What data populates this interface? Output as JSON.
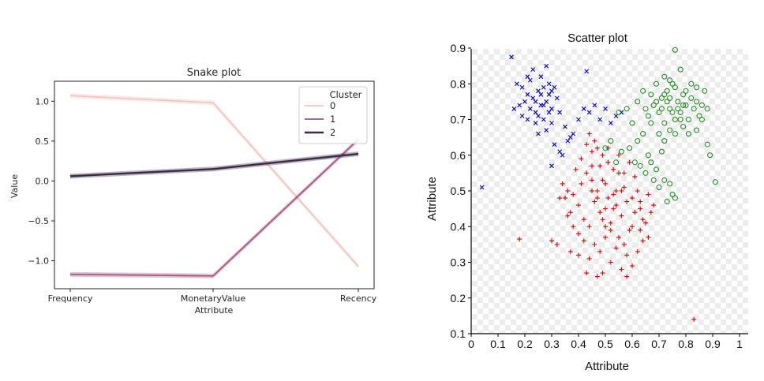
{
  "chart_data": [
    {
      "type": "line",
      "title": "Snake plot",
      "xlabel": "Attribute",
      "ylabel": "Value",
      "categories": [
        "Frequency",
        "MonetaryValue",
        "Recency"
      ],
      "ylim": [
        -1.35,
        1.25
      ],
      "yticks": [
        "1.0",
        "0.5",
        "0.0",
        "−0.5",
        "−1.0"
      ],
      "ytick_values": [
        1.0,
        0.5,
        0.0,
        -0.5,
        -1.0
      ],
      "legend": {
        "title": "Cluster",
        "position": "top-right"
      },
      "colors": [
        "#f1c4bd",
        "#a0527f",
        "#3a2a46"
      ],
      "series": [
        {
          "name": "0",
          "values": [
            1.07,
            0.98,
            -1.07
          ]
        },
        {
          "name": "1",
          "values": [
            -1.17,
            -1.19,
            0.52
          ]
        },
        {
          "name": "2",
          "values": [
            0.06,
            0.15,
            0.34
          ]
        }
      ]
    },
    {
      "type": "scatter",
      "title": "Scatter plot",
      "xlabel": "Attribute",
      "ylabel": "Attribute",
      "xlim": [
        0,
        1
      ],
      "ylim": [
        0.1,
        0.9
      ],
      "xticks": [
        "0",
        "0.1",
        "0.2",
        "0.3",
        "0.4",
        "0.5",
        "0.6",
        "0.7",
        "0.8",
        "0.9",
        "1"
      ],
      "xtick_values": [
        0,
        0.1,
        0.2,
        0.3,
        0.4,
        0.5,
        0.6,
        0.7,
        0.8,
        0.9,
        1
      ],
      "yticks": [
        "0.1",
        "0.2",
        "0.3",
        "0.4",
        "0.5",
        "0.6",
        "0.7",
        "0.8",
        "0.9"
      ],
      "ytick_values": [
        0.1,
        0.2,
        0.3,
        0.4,
        0.5,
        0.6,
        0.7,
        0.8,
        0.9
      ],
      "grid": "checkerboard",
      "series": [
        {
          "marker": "x",
          "color": "#0000cc",
          "points": [
            [
              0.15,
              0.875
            ],
            [
              0.04,
              0.51
            ],
            [
              0.43,
              0.835
            ],
            [
              0.19,
              0.79
            ],
            [
              0.21,
              0.77
            ],
            [
              0.22,
              0.73
            ],
            [
              0.23,
              0.76
            ],
            [
              0.24,
              0.72
            ],
            [
              0.25,
              0.78
            ],
            [
              0.26,
              0.74
            ],
            [
              0.27,
              0.7
            ],
            [
              0.28,
              0.75
            ],
            [
              0.29,
              0.77
            ],
            [
              0.3,
              0.73
            ],
            [
              0.31,
              0.79
            ],
            [
              0.2,
              0.75
            ],
            [
              0.22,
              0.81
            ],
            [
              0.24,
              0.69
            ],
            [
              0.26,
              0.82
            ],
            [
              0.28,
              0.67
            ],
            [
              0.3,
              0.69
            ],
            [
              0.32,
              0.76
            ],
            [
              0.23,
              0.84
            ],
            [
              0.25,
              0.71
            ],
            [
              0.27,
              0.79
            ],
            [
              0.29,
              0.72
            ],
            [
              0.21,
              0.7
            ],
            [
              0.33,
              0.72
            ],
            [
              0.18,
              0.74
            ],
            [
              0.19,
              0.71
            ],
            [
              0.35,
              0.68
            ],
            [
              0.36,
              0.64
            ],
            [
              0.38,
              0.66
            ],
            [
              0.4,
              0.7
            ],
            [
              0.42,
              0.73
            ],
            [
              0.44,
              0.72
            ],
            [
              0.46,
              0.74
            ],
            [
              0.48,
              0.7
            ],
            [
              0.5,
              0.73
            ],
            [
              0.52,
              0.69
            ],
            [
              0.54,
              0.71
            ],
            [
              0.56,
              0.72
            ],
            [
              0.31,
              0.63
            ],
            [
              0.33,
              0.61
            ],
            [
              0.3,
              0.57
            ],
            [
              0.34,
              0.6
            ],
            [
              0.37,
              0.65
            ],
            [
              0.27,
              0.74
            ],
            [
              0.24,
              0.75
            ],
            [
              0.26,
              0.77
            ],
            [
              0.28,
              0.85
            ],
            [
              0.17,
              0.8
            ],
            [
              0.16,
              0.73
            ],
            [
              0.21,
              0.82
            ],
            [
              0.25,
              0.66
            ],
            [
              0.29,
              0.8
            ],
            [
              0.3,
              0.78
            ]
          ]
        },
        {
          "marker": "+",
          "color": "#dd0000",
          "points": [
            [
              0.35,
              0.48
            ],
            [
              0.37,
              0.44
            ],
            [
              0.38,
              0.49
            ],
            [
              0.4,
              0.46
            ],
            [
              0.41,
              0.52
            ],
            [
              0.42,
              0.42
            ],
            [
              0.43,
              0.55
            ],
            [
              0.44,
              0.4
            ],
            [
              0.45,
              0.57
            ],
            [
              0.46,
              0.47
            ],
            [
              0.47,
              0.5
            ],
            [
              0.48,
              0.44
            ],
            [
              0.49,
              0.53
            ],
            [
              0.5,
              0.45
            ],
            [
              0.51,
              0.58
            ],
            [
              0.52,
              0.41
            ],
            [
              0.53,
              0.49
            ],
            [
              0.54,
              0.46
            ],
            [
              0.55,
              0.6
            ],
            [
              0.56,
              0.43
            ],
            [
              0.57,
              0.51
            ],
            [
              0.58,
              0.47
            ],
            [
              0.59,
              0.39
            ],
            [
              0.6,
              0.48
            ],
            [
              0.61,
              0.44
            ],
            [
              0.62,
              0.5
            ],
            [
              0.63,
              0.45
            ],
            [
              0.64,
              0.42
            ],
            [
              0.65,
              0.41
            ],
            [
              0.66,
              0.37
            ],
            [
              0.67,
              0.44
            ],
            [
              0.43,
              0.63
            ],
            [
              0.45,
              0.61
            ],
            [
              0.47,
              0.62
            ],
            [
              0.49,
              0.6
            ],
            [
              0.51,
              0.62
            ],
            [
              0.53,
              0.56
            ],
            [
              0.55,
              0.55
            ],
            [
              0.46,
              0.35
            ],
            [
              0.48,
              0.33
            ],
            [
              0.5,
              0.37
            ],
            [
              0.52,
              0.3
            ],
            [
              0.54,
              0.34
            ],
            [
              0.56,
              0.28
            ],
            [
              0.58,
              0.32
            ],
            [
              0.6,
              0.29
            ],
            [
              0.44,
              0.31
            ],
            [
              0.42,
              0.36
            ],
            [
              0.4,
              0.38
            ],
            [
              0.38,
              0.4
            ],
            [
              0.36,
              0.43
            ],
            [
              0.33,
              0.48
            ],
            [
              0.34,
              0.52
            ],
            [
              0.3,
              0.36
            ],
            [
              0.32,
              0.35
            ],
            [
              0.18,
              0.365
            ],
            [
              0.83,
              0.14
            ],
            [
              0.47,
              0.48
            ],
            [
              0.5,
              0.52
            ],
            [
              0.53,
              0.45
            ],
            [
              0.49,
              0.42
            ],
            [
              0.51,
              0.48
            ],
            [
              0.45,
              0.53
            ],
            [
              0.57,
              0.55
            ],
            [
              0.59,
              0.58
            ],
            [
              0.61,
              0.54
            ],
            [
              0.63,
              0.47
            ],
            [
              0.66,
              0.49
            ],
            [
              0.68,
              0.46
            ],
            [
              0.64,
              0.36
            ],
            [
              0.62,
              0.33
            ],
            [
              0.39,
              0.56
            ],
            [
              0.41,
              0.59
            ],
            [
              0.44,
              0.66
            ],
            [
              0.46,
              0.64
            ],
            [
              0.48,
              0.57
            ],
            [
              0.52,
              0.39
            ],
            [
              0.55,
              0.37
            ],
            [
              0.57,
              0.35
            ],
            [
              0.43,
              0.27
            ],
            [
              0.47,
              0.26
            ],
            [
              0.49,
              0.27
            ],
            [
              0.58,
              0.26
            ],
            [
              0.36,
              0.5
            ],
            [
              0.37,
              0.33
            ],
            [
              0.4,
              0.32
            ],
            [
              0.45,
              0.5
            ],
            [
              0.5,
              0.4
            ],
            [
              0.54,
              0.5
            ],
            [
              0.56,
              0.5
            ],
            [
              0.6,
              0.4
            ],
            [
              0.63,
              0.39
            ]
          ]
        },
        {
          "marker": "o",
          "color": "#118811",
          "points": [
            [
              0.76,
              0.895
            ],
            [
              0.91,
              0.525
            ],
            [
              0.62,
              0.75
            ],
            [
              0.64,
              0.78
            ],
            [
              0.66,
              0.71
            ],
            [
              0.67,
              0.77
            ],
            [
              0.68,
              0.74
            ],
            [
              0.69,
              0.8
            ],
            [
              0.7,
              0.72
            ],
            [
              0.71,
              0.76
            ],
            [
              0.72,
              0.69
            ],
            [
              0.73,
              0.78
            ],
            [
              0.74,
              0.73
            ],
            [
              0.75,
              0.8
            ],
            [
              0.76,
              0.7
            ],
            [
              0.77,
              0.75
            ],
            [
              0.78,
              0.72
            ],
            [
              0.79,
              0.77
            ],
            [
              0.8,
              0.74
            ],
            [
              0.81,
              0.7
            ],
            [
              0.82,
              0.76
            ],
            [
              0.83,
              0.73
            ],
            [
              0.84,
              0.79
            ],
            [
              0.85,
              0.71
            ],
            [
              0.86,
              0.74
            ],
            [
              0.87,
              0.78
            ],
            [
              0.88,
              0.73
            ],
            [
              0.72,
              0.82
            ],
            [
              0.74,
              0.81
            ],
            [
              0.76,
              0.79
            ],
            [
              0.78,
              0.84
            ],
            [
              0.7,
              0.66
            ],
            [
              0.72,
              0.64
            ],
            [
              0.74,
              0.67
            ],
            [
              0.76,
              0.66
            ],
            [
              0.79,
              0.68
            ],
            [
              0.81,
              0.66
            ],
            [
              0.84,
              0.67
            ],
            [
              0.86,
              0.7
            ],
            [
              0.88,
              0.63
            ],
            [
              0.89,
              0.6
            ],
            [
              0.62,
              0.64
            ],
            [
              0.64,
              0.66
            ],
            [
              0.6,
              0.69
            ],
            [
              0.58,
              0.73
            ],
            [
              0.55,
              0.72
            ],
            [
              0.5,
              0.62
            ],
            [
              0.52,
              0.64
            ],
            [
              0.54,
              0.58
            ],
            [
              0.56,
              0.61
            ],
            [
              0.59,
              0.62
            ],
            [
              0.61,
              0.58
            ],
            [
              0.63,
              0.57
            ],
            [
              0.65,
              0.55
            ],
            [
              0.67,
              0.58
            ],
            [
              0.69,
              0.56
            ],
            [
              0.71,
              0.61
            ],
            [
              0.72,
              0.53
            ],
            [
              0.74,
              0.52
            ],
            [
              0.75,
              0.49
            ],
            [
              0.73,
              0.47
            ],
            [
              0.76,
              0.48
            ],
            [
              0.7,
              0.51
            ],
            [
              0.68,
              0.53
            ],
            [
              0.66,
              0.6
            ],
            [
              0.73,
              0.75
            ],
            [
              0.75,
              0.72
            ],
            [
              0.77,
              0.73
            ],
            [
              0.71,
              0.73
            ],
            [
              0.72,
              0.77
            ],
            [
              0.74,
              0.76
            ],
            [
              0.78,
              0.7
            ],
            [
              0.8,
              0.78
            ],
            [
              0.82,
              0.8
            ],
            [
              0.84,
              0.75
            ],
            [
              0.65,
              0.73
            ],
            [
              0.67,
              0.69
            ],
            [
              0.69,
              0.75
            ],
            [
              0.79,
              0.74
            ]
          ]
        }
      ]
    }
  ]
}
